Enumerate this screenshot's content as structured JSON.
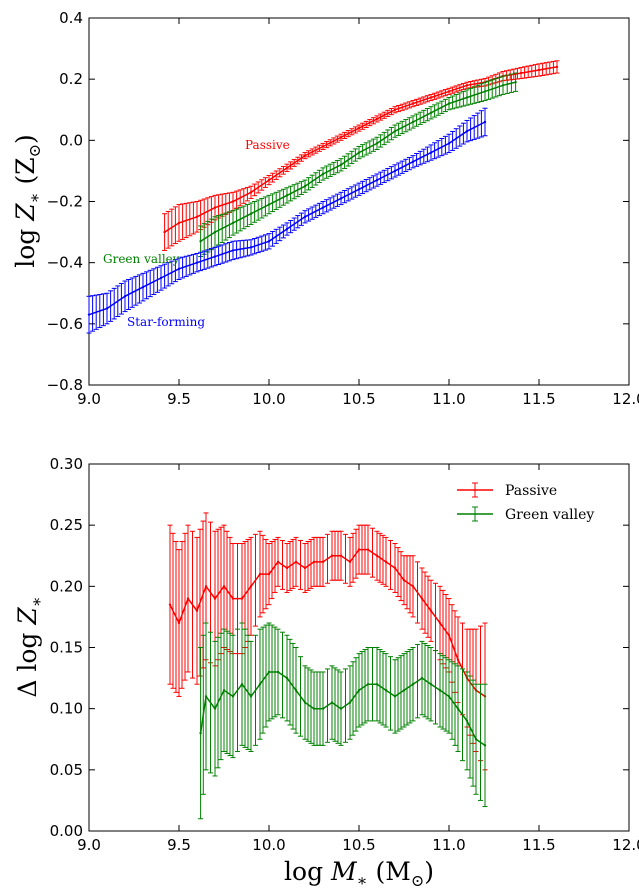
{
  "chart_data": [
    {
      "type": "line",
      "panel": "top",
      "ylabel": "log Z* (Z⊙)",
      "xlim": [
        9.0,
        12.0
      ],
      "ylim": [
        -0.8,
        0.4
      ],
      "xticks": [
        "9.0",
        "9.5",
        "10.0",
        "10.5",
        "11.0",
        "11.5",
        "12.0"
      ],
      "yticks": [
        "−0.8",
        "−0.6",
        "−0.4",
        "−0.2",
        "0.0",
        "0.2",
        "0.4"
      ],
      "grid": false,
      "annotations": [
        {
          "text": "Passive",
          "color": "#ff0000"
        },
        {
          "text": "Green valley",
          "color": "#008000"
        },
        {
          "text": "Star-forming",
          "color": "#0000ff"
        }
      ],
      "series": [
        {
          "name": "Passive",
          "color": "#ff0000",
          "x": [
            9.42,
            9.5,
            9.6,
            9.7,
            9.8,
            9.9,
            10.0,
            10.1,
            10.2,
            10.3,
            10.4,
            10.5,
            10.6,
            10.7,
            10.8,
            10.9,
            11.0,
            11.1,
            11.2,
            11.3,
            11.4,
            11.5,
            11.6
          ],
          "y": [
            -0.3,
            -0.27,
            -0.25,
            -0.22,
            -0.2,
            -0.17,
            -0.13,
            -0.09,
            -0.05,
            -0.02,
            0.01,
            0.04,
            0.07,
            0.1,
            0.12,
            0.14,
            0.16,
            0.18,
            0.19,
            0.21,
            0.22,
            0.23,
            0.24
          ],
          "err": [
            0.06,
            0.06,
            0.05,
            0.04,
            0.03,
            0.02,
            0.015,
            0.012,
            0.01,
            0.01,
            0.01,
            0.01,
            0.01,
            0.01,
            0.01,
            0.01,
            0.01,
            0.01,
            0.012,
            0.015,
            0.018,
            0.02,
            0.02
          ]
        },
        {
          "name": "Green valley",
          "color": "#008000",
          "x": [
            9.62,
            9.7,
            9.8,
            9.9,
            10.0,
            10.1,
            10.2,
            10.3,
            10.4,
            10.5,
            10.6,
            10.7,
            10.8,
            10.9,
            11.0,
            11.1,
            11.2,
            11.3,
            11.37
          ],
          "y": [
            -0.33,
            -0.3,
            -0.27,
            -0.24,
            -0.21,
            -0.18,
            -0.15,
            -0.11,
            -0.08,
            -0.04,
            -0.01,
            0.03,
            0.06,
            0.09,
            0.12,
            0.14,
            0.16,
            0.18,
            0.19
          ],
          "err": [
            0.05,
            0.05,
            0.04,
            0.035,
            0.03,
            0.025,
            0.02,
            0.02,
            0.02,
            0.02,
            0.02,
            0.02,
            0.02,
            0.02,
            0.02,
            0.025,
            0.03,
            0.03,
            0.03
          ]
        },
        {
          "name": "Star-forming",
          "color": "#0000ff",
          "x": [
            9.0,
            9.1,
            9.2,
            9.3,
            9.4,
            9.5,
            9.6,
            9.7,
            9.8,
            9.9,
            10.0,
            10.1,
            10.2,
            10.3,
            10.4,
            10.5,
            10.6,
            10.7,
            10.8,
            10.9,
            11.0,
            11.1,
            11.2
          ],
          "y": [
            -0.57,
            -0.55,
            -0.51,
            -0.48,
            -0.45,
            -0.42,
            -0.4,
            -0.38,
            -0.36,
            -0.35,
            -0.33,
            -0.29,
            -0.25,
            -0.22,
            -0.19,
            -0.16,
            -0.13,
            -0.1,
            -0.07,
            -0.04,
            -0.01,
            0.03,
            0.06
          ],
          "err": [
            0.06,
            0.05,
            0.05,
            0.045,
            0.04,
            0.035,
            0.03,
            0.03,
            0.03,
            0.025,
            0.025,
            0.02,
            0.02,
            0.02,
            0.02,
            0.02,
            0.02,
            0.02,
            0.02,
            0.025,
            0.03,
            0.035,
            0.045
          ]
        }
      ]
    },
    {
      "type": "line",
      "panel": "bottom",
      "xlabel": "log M* (M⊙)",
      "ylabel": "Δ log Z*",
      "xlim": [
        9.0,
        12.0
      ],
      "ylim": [
        0.0,
        0.3
      ],
      "xticks": [
        "9.0",
        "9.5",
        "10.0",
        "10.5",
        "11.0",
        "11.5",
        "12.0"
      ],
      "yticks": [
        "0.00",
        "0.05",
        "0.10",
        "0.15",
        "0.20",
        "0.25",
        "0.30"
      ],
      "grid": false,
      "legend": "top-right",
      "series": [
        {
          "name": "Passive",
          "color": "#ff0000",
          "x": [
            9.45,
            9.5,
            9.55,
            9.6,
            9.65,
            9.7,
            9.75,
            9.8,
            9.85,
            9.9,
            9.95,
            10.0,
            10.05,
            10.1,
            10.15,
            10.2,
            10.25,
            10.3,
            10.35,
            10.4,
            10.45,
            10.5,
            10.55,
            10.6,
            10.65,
            10.7,
            10.75,
            10.8,
            10.85,
            10.9,
            10.95,
            11.0,
            11.05,
            11.1,
            11.15,
            11.2
          ],
          "y": [
            0.185,
            0.17,
            0.19,
            0.18,
            0.2,
            0.19,
            0.2,
            0.19,
            0.19,
            0.2,
            0.21,
            0.21,
            0.22,
            0.215,
            0.22,
            0.215,
            0.22,
            0.22,
            0.225,
            0.225,
            0.22,
            0.23,
            0.23,
            0.225,
            0.22,
            0.215,
            0.205,
            0.2,
            0.19,
            0.18,
            0.17,
            0.16,
            0.14,
            0.125,
            0.115,
            0.11
          ],
          "err": [
            0.065,
            0.06,
            0.06,
            0.06,
            0.06,
            0.055,
            0.05,
            0.045,
            0.045,
            0.04,
            0.035,
            0.025,
            0.02,
            0.02,
            0.02,
            0.02,
            0.02,
            0.02,
            0.02,
            0.02,
            0.02,
            0.02,
            0.02,
            0.02,
            0.02,
            0.02,
            0.02,
            0.025,
            0.025,
            0.025,
            0.03,
            0.03,
            0.035,
            0.04,
            0.05,
            0.06
          ]
        },
        {
          "name": "Green valley",
          "color": "#008000",
          "x": [
            9.62,
            9.65,
            9.7,
            9.75,
            9.8,
            9.85,
            9.9,
            9.95,
            10.0,
            10.05,
            10.1,
            10.15,
            10.2,
            10.25,
            10.3,
            10.35,
            10.4,
            10.45,
            10.5,
            10.55,
            10.6,
            10.65,
            10.7,
            10.75,
            10.8,
            10.85,
            10.9,
            10.95,
            11.0,
            11.05,
            11.1,
            11.15,
            11.2
          ],
          "y": [
            0.08,
            0.11,
            0.1,
            0.115,
            0.11,
            0.12,
            0.11,
            0.12,
            0.13,
            0.13,
            0.125,
            0.115,
            0.105,
            0.1,
            0.1,
            0.105,
            0.1,
            0.105,
            0.115,
            0.12,
            0.12,
            0.115,
            0.11,
            0.115,
            0.12,
            0.125,
            0.12,
            0.115,
            0.11,
            0.1,
            0.09,
            0.075,
            0.07
          ],
          "err": [
            0.07,
            0.06,
            0.055,
            0.05,
            0.05,
            0.05,
            0.045,
            0.045,
            0.04,
            0.035,
            0.035,
            0.035,
            0.03,
            0.03,
            0.03,
            0.03,
            0.03,
            0.03,
            0.03,
            0.03,
            0.03,
            0.03,
            0.03,
            0.03,
            0.03,
            0.03,
            0.03,
            0.03,
            0.03,
            0.035,
            0.04,
            0.045,
            0.05
          ]
        }
      ]
    }
  ]
}
